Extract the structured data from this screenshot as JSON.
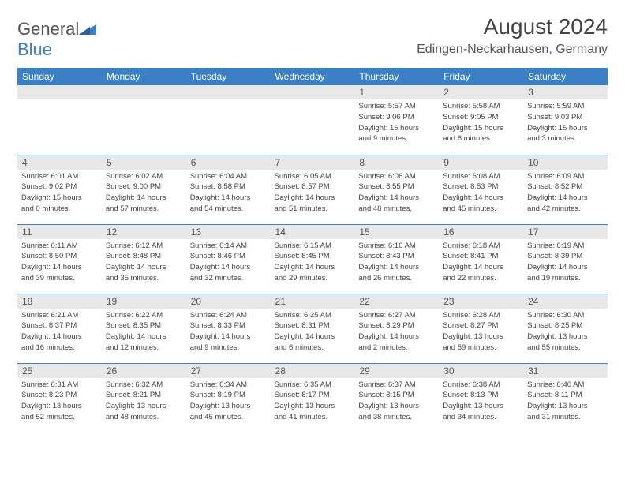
{
  "brand": {
    "part1": "General",
    "part2": "Blue"
  },
  "title": "August 2024",
  "location": "Edingen-Neckarhausen, Germany",
  "colors": {
    "header_bg": "#3b7fc4",
    "daynum_bg": "#e8e8e8",
    "border": "#3b7fc4",
    "text": "#444"
  },
  "weekdays": [
    "Sunday",
    "Monday",
    "Tuesday",
    "Wednesday",
    "Thursday",
    "Friday",
    "Saturday"
  ],
  "weeks": [
    [
      null,
      null,
      null,
      null,
      {
        "n": "1",
        "sr": "Sunrise: 5:57 AM",
        "ss": "Sunset: 9:06 PM",
        "d1": "Daylight: 15 hours",
        "d2": "and 9 minutes."
      },
      {
        "n": "2",
        "sr": "Sunrise: 5:58 AM",
        "ss": "Sunset: 9:05 PM",
        "d1": "Daylight: 15 hours",
        "d2": "and 6 minutes."
      },
      {
        "n": "3",
        "sr": "Sunrise: 5:59 AM",
        "ss": "Sunset: 9:03 PM",
        "d1": "Daylight: 15 hours",
        "d2": "and 3 minutes."
      }
    ],
    [
      {
        "n": "4",
        "sr": "Sunrise: 6:01 AM",
        "ss": "Sunset: 9:02 PM",
        "d1": "Daylight: 15 hours",
        "d2": "and 0 minutes."
      },
      {
        "n": "5",
        "sr": "Sunrise: 6:02 AM",
        "ss": "Sunset: 9:00 PM",
        "d1": "Daylight: 14 hours",
        "d2": "and 57 minutes."
      },
      {
        "n": "6",
        "sr": "Sunrise: 6:04 AM",
        "ss": "Sunset: 8:58 PM",
        "d1": "Daylight: 14 hours",
        "d2": "and 54 minutes."
      },
      {
        "n": "7",
        "sr": "Sunrise: 6:05 AM",
        "ss": "Sunset: 8:57 PM",
        "d1": "Daylight: 14 hours",
        "d2": "and 51 minutes."
      },
      {
        "n": "8",
        "sr": "Sunrise: 6:06 AM",
        "ss": "Sunset: 8:55 PM",
        "d1": "Daylight: 14 hours",
        "d2": "and 48 minutes."
      },
      {
        "n": "9",
        "sr": "Sunrise: 6:08 AM",
        "ss": "Sunset: 8:53 PM",
        "d1": "Daylight: 14 hours",
        "d2": "and 45 minutes."
      },
      {
        "n": "10",
        "sr": "Sunrise: 6:09 AM",
        "ss": "Sunset: 8:52 PM",
        "d1": "Daylight: 14 hours",
        "d2": "and 42 minutes."
      }
    ],
    [
      {
        "n": "11",
        "sr": "Sunrise: 6:11 AM",
        "ss": "Sunset: 8:50 PM",
        "d1": "Daylight: 14 hours",
        "d2": "and 39 minutes."
      },
      {
        "n": "12",
        "sr": "Sunrise: 6:12 AM",
        "ss": "Sunset: 8:48 PM",
        "d1": "Daylight: 14 hours",
        "d2": "and 35 minutes."
      },
      {
        "n": "13",
        "sr": "Sunrise: 6:14 AM",
        "ss": "Sunset: 8:46 PM",
        "d1": "Daylight: 14 hours",
        "d2": "and 32 minutes."
      },
      {
        "n": "14",
        "sr": "Sunrise: 6:15 AM",
        "ss": "Sunset: 8:45 PM",
        "d1": "Daylight: 14 hours",
        "d2": "and 29 minutes."
      },
      {
        "n": "15",
        "sr": "Sunrise: 6:16 AM",
        "ss": "Sunset: 8:43 PM",
        "d1": "Daylight: 14 hours",
        "d2": "and 26 minutes."
      },
      {
        "n": "16",
        "sr": "Sunrise: 6:18 AM",
        "ss": "Sunset: 8:41 PM",
        "d1": "Daylight: 14 hours",
        "d2": "and 22 minutes."
      },
      {
        "n": "17",
        "sr": "Sunrise: 6:19 AM",
        "ss": "Sunset: 8:39 PM",
        "d1": "Daylight: 14 hours",
        "d2": "and 19 minutes."
      }
    ],
    [
      {
        "n": "18",
        "sr": "Sunrise: 6:21 AM",
        "ss": "Sunset: 8:37 PM",
        "d1": "Daylight: 14 hours",
        "d2": "and 16 minutes."
      },
      {
        "n": "19",
        "sr": "Sunrise: 6:22 AM",
        "ss": "Sunset: 8:35 PM",
        "d1": "Daylight: 14 hours",
        "d2": "and 12 minutes."
      },
      {
        "n": "20",
        "sr": "Sunrise: 6:24 AM",
        "ss": "Sunset: 8:33 PM",
        "d1": "Daylight: 14 hours",
        "d2": "and 9 minutes."
      },
      {
        "n": "21",
        "sr": "Sunrise: 6:25 AM",
        "ss": "Sunset: 8:31 PM",
        "d1": "Daylight: 14 hours",
        "d2": "and 6 minutes."
      },
      {
        "n": "22",
        "sr": "Sunrise: 6:27 AM",
        "ss": "Sunset: 8:29 PM",
        "d1": "Daylight: 14 hours",
        "d2": "and 2 minutes."
      },
      {
        "n": "23",
        "sr": "Sunrise: 6:28 AM",
        "ss": "Sunset: 8:27 PM",
        "d1": "Daylight: 13 hours",
        "d2": "and 59 minutes."
      },
      {
        "n": "24",
        "sr": "Sunrise: 6:30 AM",
        "ss": "Sunset: 8:25 PM",
        "d1": "Daylight: 13 hours",
        "d2": "and 55 minutes."
      }
    ],
    [
      {
        "n": "25",
        "sr": "Sunrise: 6:31 AM",
        "ss": "Sunset: 8:23 PM",
        "d1": "Daylight: 13 hours",
        "d2": "and 52 minutes."
      },
      {
        "n": "26",
        "sr": "Sunrise: 6:32 AM",
        "ss": "Sunset: 8:21 PM",
        "d1": "Daylight: 13 hours",
        "d2": "and 48 minutes."
      },
      {
        "n": "27",
        "sr": "Sunrise: 6:34 AM",
        "ss": "Sunset: 8:19 PM",
        "d1": "Daylight: 13 hours",
        "d2": "and 45 minutes."
      },
      {
        "n": "28",
        "sr": "Sunrise: 6:35 AM",
        "ss": "Sunset: 8:17 PM",
        "d1": "Daylight: 13 hours",
        "d2": "and 41 minutes."
      },
      {
        "n": "29",
        "sr": "Sunrise: 6:37 AM",
        "ss": "Sunset: 8:15 PM",
        "d1": "Daylight: 13 hours",
        "d2": "and 38 minutes."
      },
      {
        "n": "30",
        "sr": "Sunrise: 6:38 AM",
        "ss": "Sunset: 8:13 PM",
        "d1": "Daylight: 13 hours",
        "d2": "and 34 minutes."
      },
      {
        "n": "31",
        "sr": "Sunrise: 6:40 AM",
        "ss": "Sunset: 8:11 PM",
        "d1": "Daylight: 13 hours",
        "d2": "and 31 minutes."
      }
    ]
  ]
}
